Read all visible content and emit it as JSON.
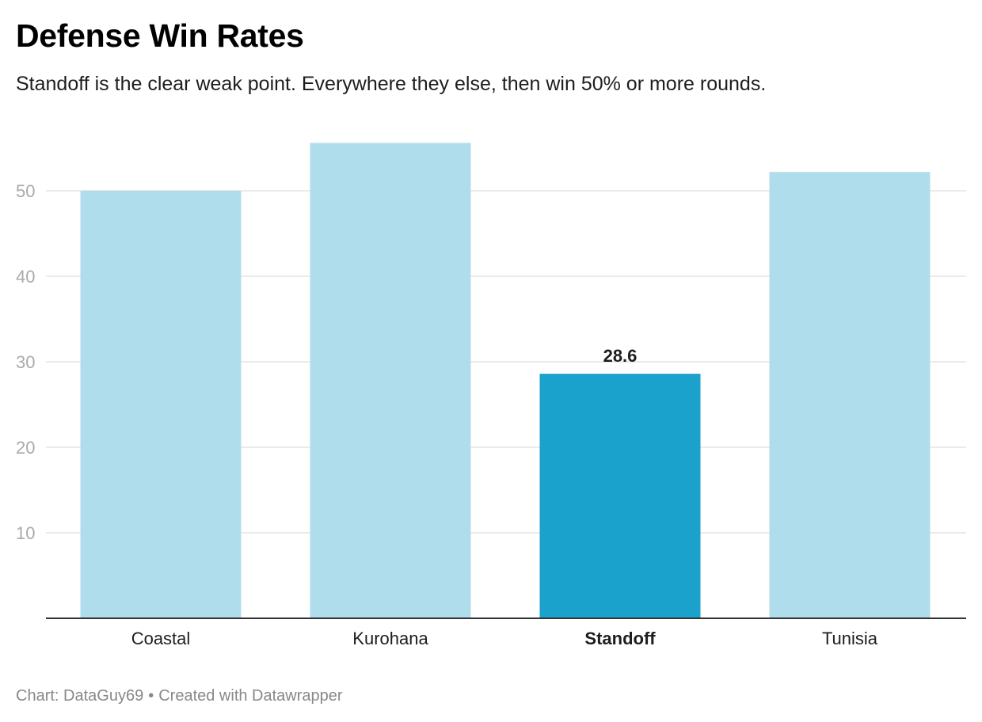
{
  "header": {
    "title": "Defense Win Rates",
    "subtitle": "Standoff is the clear weak point. Everywhere they else, then win 50% or more rounds."
  },
  "footer": {
    "chart_credit": "Chart: DataGuy69",
    "separator": "•",
    "created_with": "Created with Datawrapper"
  },
  "colors": {
    "bar": "#b0ddec",
    "highlight_bar": "#1aa1cc",
    "gridline": "#e3e3e3",
    "axis": "#333333",
    "tick_label": "#aaaaaa"
  },
  "chart_data": {
    "type": "bar",
    "categories": [
      "Coastal",
      "Kurohana",
      "Standoff",
      "Tunisia"
    ],
    "values": [
      50,
      55.6,
      28.6,
      52.2
    ],
    "highlight": "Standoff",
    "data_labels": [
      {
        "category": "Standoff",
        "text": "28.6"
      }
    ],
    "title": "Defense Win Rates",
    "subtitle": "Standoff is the clear weak point. Everywhere they else, then win 50% or more rounds.",
    "xlabel": "",
    "ylabel": "",
    "ylim": [
      0,
      60
    ],
    "yticks": [
      10,
      20,
      30,
      40,
      50
    ],
    "grid": true
  }
}
